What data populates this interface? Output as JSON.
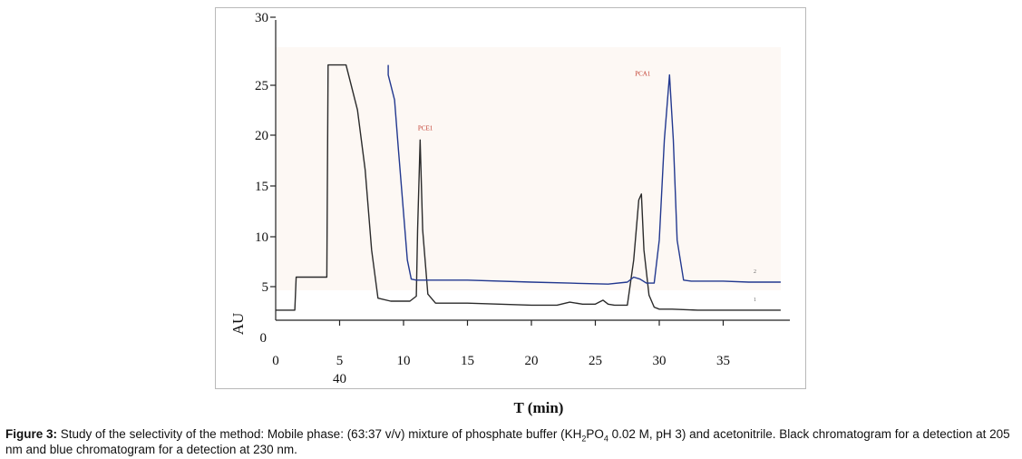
{
  "chart_data": {
    "type": "line",
    "title": "",
    "xlabel": "T (min)",
    "ylabel": "AU",
    "x_ticks": [
      "0",
      "5",
      "10",
      "15",
      "20",
      "25",
      "30",
      "35"
    ],
    "x_extra_label": "40",
    "y_ticks": [
      "0",
      "5",
      "10",
      "15",
      "20",
      "25",
      "30"
    ],
    "xlim": [
      0,
      40
    ],
    "ylim": [
      0,
      30
    ],
    "grid": false,
    "series": [
      {
        "name": "1",
        "color": "#2b2b2b",
        "x": [
          0.0,
          1.5,
          1.6,
          4.0,
          4.1,
          5.5,
          6.4,
          7.0,
          7.5,
          8.0,
          9.0,
          10.5,
          11.0,
          11.1,
          11.3,
          11.5,
          11.9,
          12.5,
          15.0,
          20.0,
          22.0,
          23.0,
          24.0,
          25.0,
          25.6,
          26.0,
          26.5,
          27.5,
          28.0,
          28.4,
          28.6,
          28.8,
          29.2,
          29.6,
          30.0,
          31.0,
          33.0,
          35.0,
          37.0,
          39.0,
          39.5
        ],
        "y": [
          3.0,
          3.0,
          6.3,
          6.3,
          27.5,
          27.5,
          23.0,
          17.0,
          9.0,
          4.2,
          3.9,
          3.9,
          4.4,
          11.0,
          20.0,
          11.0,
          4.6,
          3.7,
          3.7,
          3.5,
          3.5,
          3.8,
          3.6,
          3.6,
          4.0,
          3.6,
          3.5,
          3.5,
          8.0,
          14.0,
          14.6,
          9.0,
          4.5,
          3.3,
          3.1,
          3.1,
          3.0,
          3.0,
          3.0,
          3.0,
          3.0
        ]
      },
      {
        "name": "2",
        "color": "#22388f",
        "x": [
          8.8,
          8.8,
          9.0,
          9.3,
          9.6,
          10.3,
          10.6,
          11.0,
          11.5,
          15.0,
          20.0,
          23.0,
          26.0,
          27.5,
          28.0,
          28.5,
          29.0,
          29.6,
          30.0,
          30.4,
          30.8,
          31.1,
          31.4,
          31.9,
          32.5,
          35.0,
          37.0,
          39.5
        ],
        "y": [
          27.5,
          26.5,
          25.5,
          24.0,
          19.0,
          8.0,
          6.1,
          6.0,
          6.0,
          6.0,
          5.8,
          5.7,
          5.6,
          5.8,
          6.3,
          6.1,
          5.7,
          5.7,
          10.0,
          20.0,
          26.5,
          20.0,
          10.0,
          6.0,
          5.9,
          5.9,
          5.8,
          5.8
        ]
      }
    ],
    "annotations": [
      {
        "text": "PCE1",
        "x": 11.0,
        "y": 21.0
      },
      {
        "text": "PCA1",
        "x": 28.0,
        "y": 26.4
      }
    ]
  },
  "caption": {
    "figure_label": "Figure 3:",
    "text_part1": " Study of the selectivity of the method: Mobile phase: (63:37 v/v) mixture of phosphate buffer (KH",
    "sub1": "2",
    "text_part2": "PO",
    "sub2": "4",
    "text_part3": " 0.02 M, pH 3) and acetonitrile. Black chromatogram for a detection at 205 nm and blue chromatogram for a detection at 230 nm."
  }
}
